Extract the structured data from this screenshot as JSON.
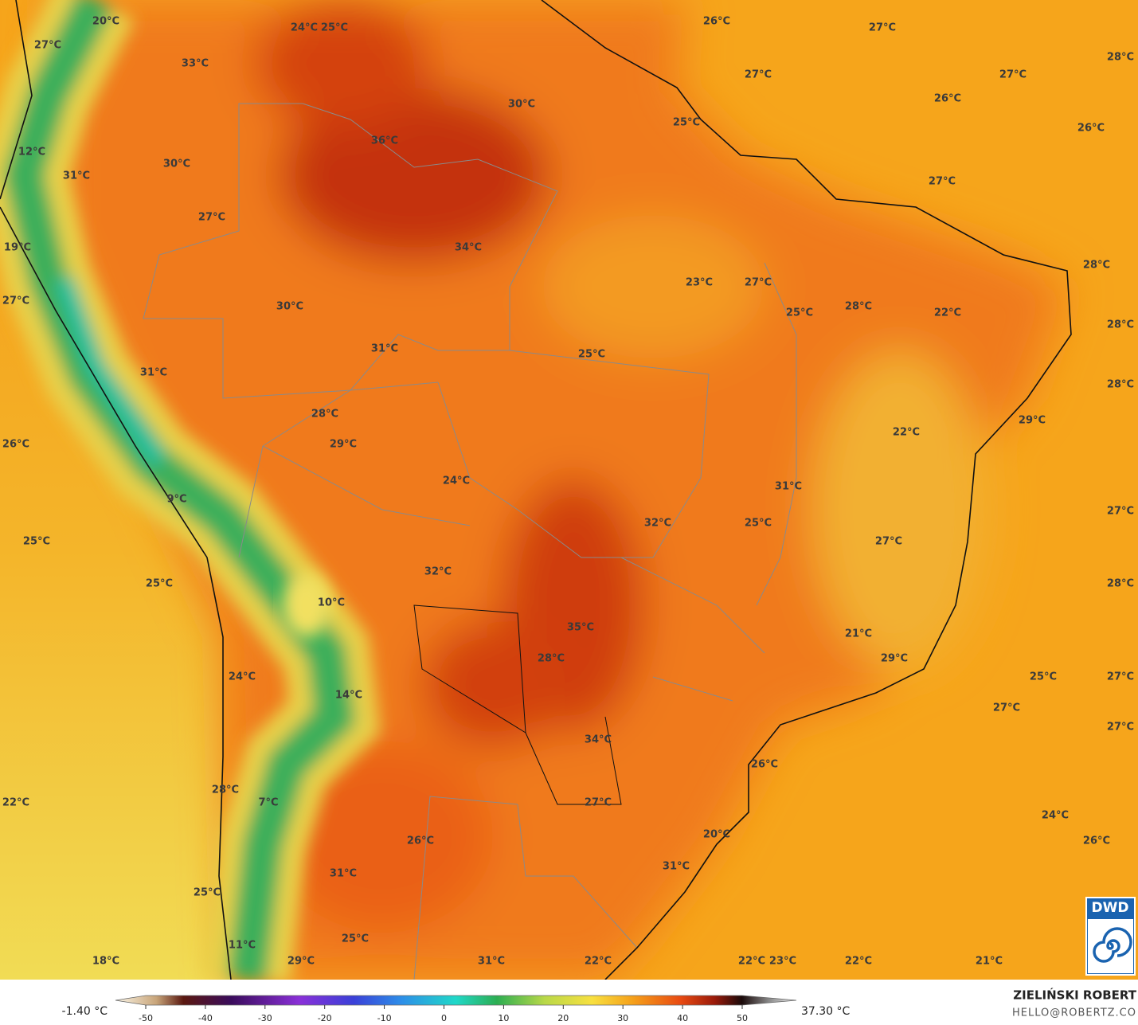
{
  "labels": [
    "20°C",
    "24°C",
    "25°C",
    "26°C",
    "27°C",
    "28°C",
    "27°C",
    "33°C",
    "27°C",
    "27°C",
    "26°C",
    "30°C",
    "25°C",
    "26°C",
    "36°C",
    "12°C",
    "30°C",
    "31°C",
    "27°C",
    "27°C",
    "19°C",
    "34°C",
    "28°C",
    "23°C",
    "27°C",
    "27°C",
    "30°C",
    "28°C",
    "25°C",
    "22°C",
    "28°C",
    "31°C",
    "25°C",
    "31°C",
    "28°C",
    "28°C",
    "29°C",
    "22°C",
    "26°C",
    "29°C",
    "24°C",
    "31°C",
    "9°C",
    "27°C",
    "32°C",
    "25°C",
    "25°C",
    "27°C",
    "32°C",
    "25°C",
    "28°C",
    "10°C",
    "35°C",
    "21°C",
    "28°C",
    "29°C",
    "24°C",
    "25°C",
    "27°C",
    "14°C",
    "27°C",
    "27°C",
    "34°C",
    "26°C",
    "28°C",
    "22°C",
    "27°C",
    "7°C",
    "24°C",
    "20°C",
    "26°C",
    "26°C",
    "31°C",
    "31°C",
    "25°C",
    "25°C",
    "11°C",
    "18°C",
    "29°C",
    "31°C",
    "22°C",
    "22°C",
    "23°C",
    "22°C",
    "21°C"
  ],
  "colorbar": {
    "min_label": "-1.40 °C",
    "max_label": "37.30 °C",
    "ticks": [
      -50,
      -40,
      -30,
      -20,
      -10,
      0,
      10,
      20,
      30,
      40,
      50
    ]
  },
  "credit": {
    "name": "ZIELIŃSKI ROBERT",
    "email": "HELLO@ROBERTZ.CO",
    "logo": "DWD"
  }
}
